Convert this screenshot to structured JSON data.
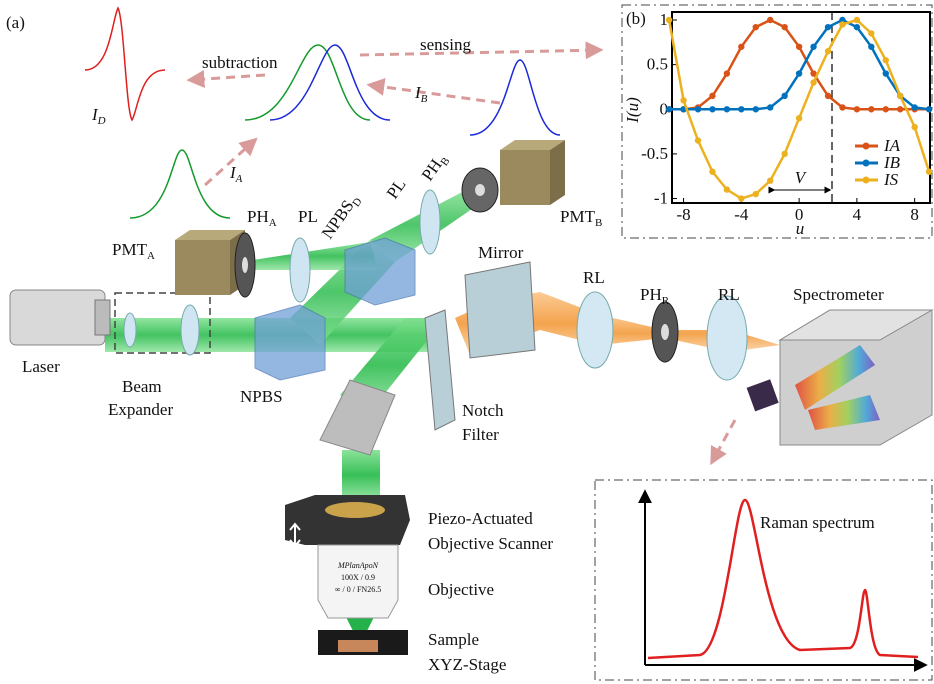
{
  "panel_a": {
    "tag": "(a)",
    "subtraction": "subtraction",
    "sensing": "sensing",
    "signal_d": {
      "text": "I",
      "sub": "D"
    },
    "signal_b": {
      "text": "I",
      "sub": "B"
    },
    "signal_a": {
      "text": "I",
      "sub": "A"
    },
    "ph_a": {
      "text": "PH",
      "sub": "A"
    },
    "pl_left": "PL",
    "npbs_d": {
      "text": "NPBS",
      "sub": "D"
    },
    "pl_right": "PL",
    "ph_b": {
      "text": "PH",
      "sub": "B"
    },
    "pmt_b": {
      "text": "PMT",
      "sub": "B"
    },
    "pmt_a": {
      "text": "PMT",
      "sub": "A"
    },
    "mirror": "Mirror",
    "rl_left": "RL",
    "ph_r": {
      "text": "PH",
      "sub": "R"
    },
    "rl_right": "RL",
    "spectrometer": "Spectrometer",
    "laser": "Laser",
    "beam_expander": [
      "Beam",
      "Expander"
    ],
    "npbs": "NPBS",
    "notch_filter": [
      "Notch",
      "Filter"
    ],
    "scanner": [
      "Piezo-Actuated",
      "Objective Scanner"
    ],
    "objective_marking": [
      "MPlanApoN",
      "100X / 0.9",
      "∞ / 0 / FN26.5"
    ],
    "objective": "Objective",
    "sample": "Sample",
    "stage": "XYZ-Stage",
    "raman": "Raman spectrum"
  },
  "chart_data": {
    "type": "line",
    "tag": "(b)",
    "ylabel": "I(u)",
    "xlabel": "u",
    "annotation": "V",
    "x": [
      -9,
      -8,
      -7,
      -6,
      -5,
      -4,
      -3,
      -2,
      -1,
      0,
      1,
      2,
      3,
      4,
      5,
      6,
      7,
      8,
      9
    ],
    "series": [
      {
        "name": "IA",
        "color": "#d95319",
        "values": [
          0,
          0,
          0.02,
          0.15,
          0.4,
          0.7,
          0.92,
          1,
          0.92,
          0.7,
          0.4,
          0.15,
          0.02,
          0,
          0,
          0,
          0,
          0,
          0
        ]
      },
      {
        "name": "IB",
        "color": "#0072bd",
        "values": [
          0,
          0,
          0,
          0,
          0,
          0,
          0,
          0.02,
          0.15,
          0.4,
          0.7,
          0.92,
          1,
          0.92,
          0.7,
          0.4,
          0.15,
          0.02,
          0
        ]
      },
      {
        "name": "IS",
        "color": "#edb120",
        "values": [
          1,
          0.1,
          -0.35,
          -0.7,
          -0.9,
          -1,
          -0.95,
          -0.8,
          -0.5,
          -0.1,
          0.3,
          0.65,
          0.95,
          1,
          0.85,
          0.55,
          0.15,
          -0.2,
          -0.7
        ]
      }
    ],
    "xlim": [
      -8.8,
      9.2
    ],
    "ylim": [
      -1.05,
      1
    ],
    "xticks": [
      -8,
      -4,
      0,
      4,
      8
    ],
    "yticks": [
      -1,
      -0.5,
      0,
      0.5,
      1
    ]
  }
}
